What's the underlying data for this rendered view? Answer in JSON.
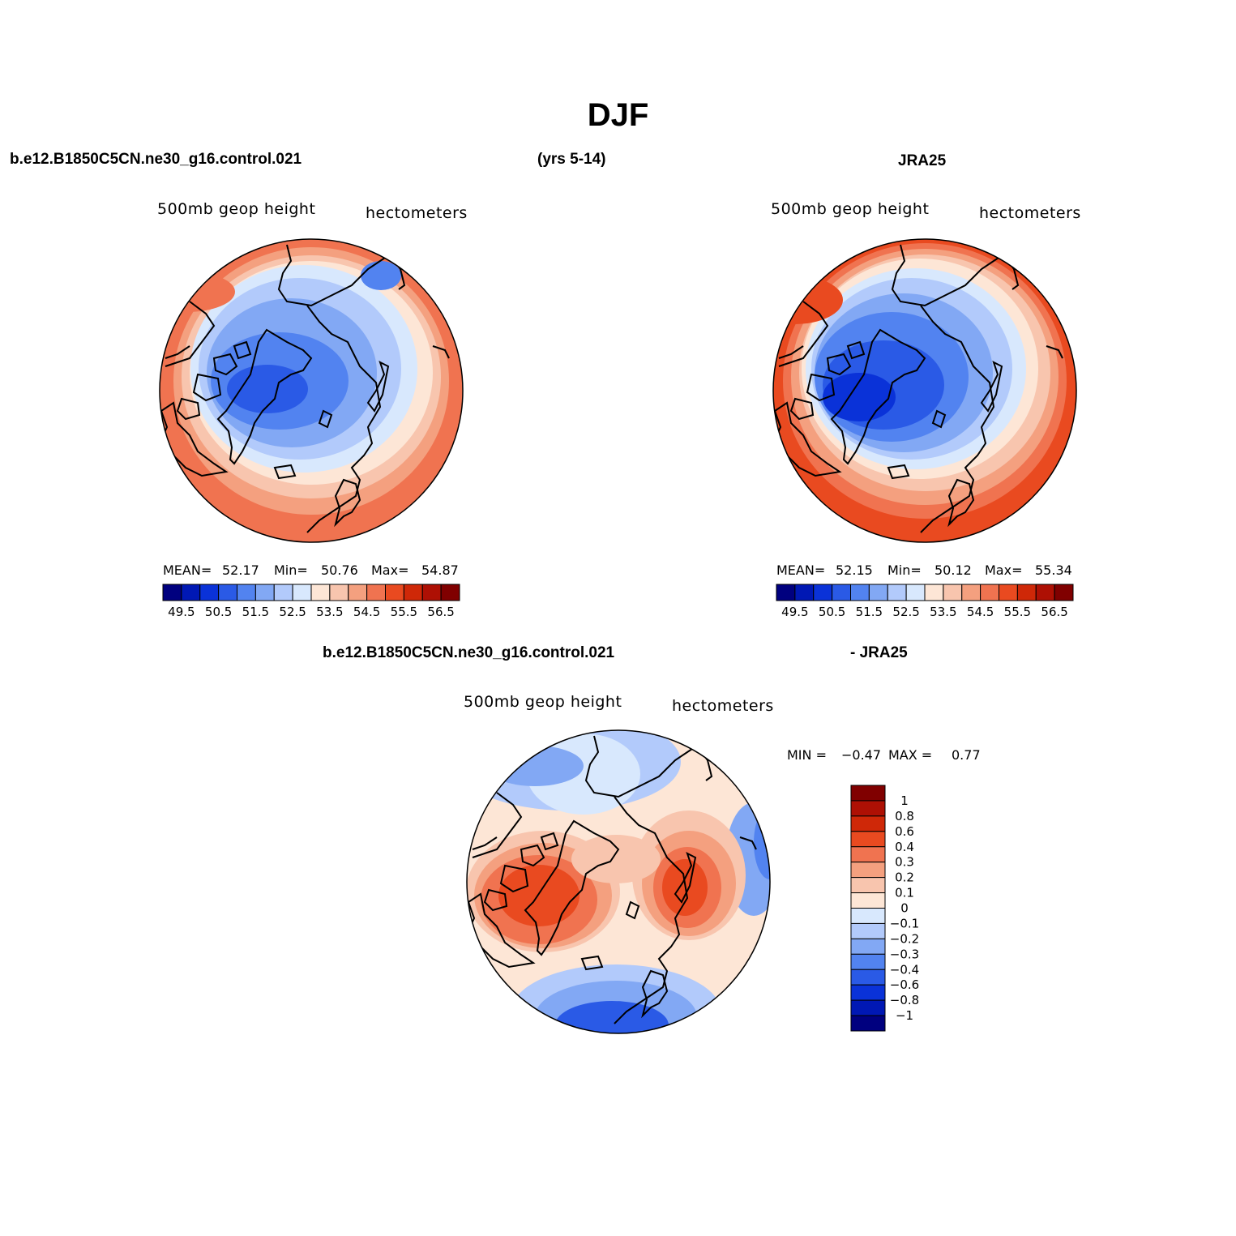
{
  "title": "DJF",
  "header": {
    "case_name": "b.e12.B1850C5CN.ne30_g16.control.021",
    "years": "(yrs 5-14)",
    "obs_name": "JRA25"
  },
  "panels": {
    "model": {
      "variable": "500mb  geop  height",
      "units": "hectometers",
      "stats": {
        "mean_label": "MEAN=",
        "mean": "52.17",
        "min_label": "Min=",
        "min": "50.76",
        "max_label": "Max=",
        "max": "54.87"
      }
    },
    "obs": {
      "variable": "500mb  geop  height",
      "units": "hectometers",
      "stats": {
        "mean_label": "MEAN=",
        "mean": "52.15",
        "min_label": "Min=",
        "min": "50.12",
        "max_label": "Max=",
        "max": "55.34"
      }
    },
    "diff": {
      "title_left": "b.e12.B1850C5CN.ne30_g16.control.021",
      "title_right": "- JRA25",
      "variable": "500mb  geop  height",
      "units": "hectometers",
      "stats": {
        "min_label": "MIN =",
        "min": "−0.47",
        "max_label": "MAX =",
        "max": "0.77"
      }
    }
  },
  "colorbars": {
    "abs": {
      "colors": [
        "#00007f",
        "#0018b4",
        "#0a32d8",
        "#2a5ae6",
        "#5283f0",
        "#82a8f4",
        "#b2cafb",
        "#d8e8fd",
        "#fde6d6",
        "#f8c5ae",
        "#f4a07f",
        "#f07350",
        "#e94a20",
        "#cf2808",
        "#ae1004",
        "#800000"
      ],
      "labels": [
        "49.5",
        "50.5",
        "51.5",
        "52.5",
        "53.5",
        "54.5",
        "55.5",
        "56.5"
      ]
    },
    "diff": {
      "colors": [
        "#00007f",
        "#0018b4",
        "#0a32d8",
        "#2a5ae6",
        "#5283f0",
        "#82a8f4",
        "#b2cafb",
        "#d8e8fd",
        "#fde6d6",
        "#f8c5ae",
        "#f4a07f",
        "#f07350",
        "#e94a20",
        "#cf2808",
        "#ae1004",
        "#800000"
      ],
      "labels": [
        "1",
        "0.8",
        "0.6",
        "0.4",
        "0.3",
        "0.2",
        "0.1",
        "0",
        "−0.1",
        "−0.2",
        "−0.3",
        "−0.4",
        "−0.6",
        "−0.8",
        "−1"
      ]
    }
  },
  "legend_colors": {
    "land_outline": "#000000",
    "map_border": "#000000"
  }
}
